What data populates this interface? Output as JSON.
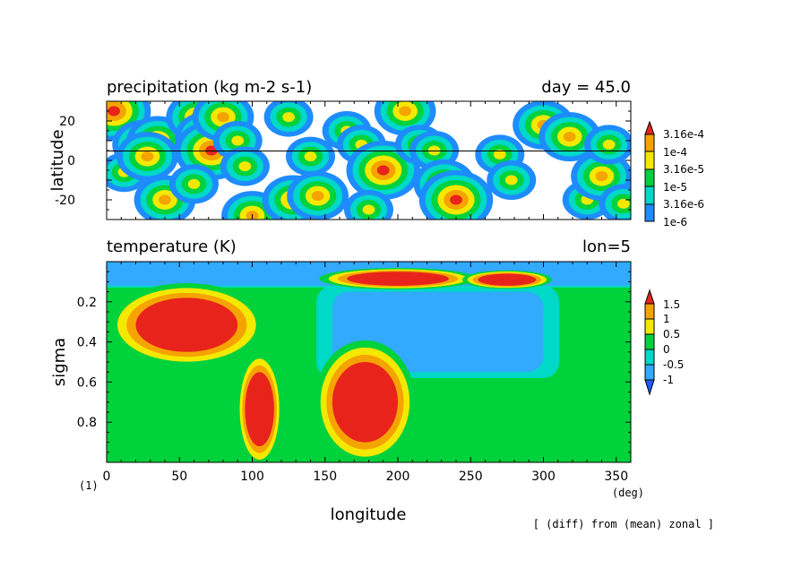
{
  "chart_data": [
    {
      "type": "heatmap",
      "title": "precipitation (kg m-2 s-1)",
      "right_title": "day = 45.0",
      "ylabel": "latitude",
      "xlim": [
        0,
        360
      ],
      "ylim": [
        -30,
        30
      ],
      "yticks": [
        "20",
        "0",
        "-20"
      ],
      "ytick_values": [
        20,
        0,
        -20
      ],
      "reference_line_y": 5,
      "colorbar": {
        "type": "log-contour",
        "labels": [
          "3.16e-4",
          "1e-4",
          "3.16e-5",
          "1e-5",
          "3.16e-6",
          "1e-6"
        ],
        "colors": [
          "#e8231c",
          "#f5a300",
          "#f5e800",
          "#00d23c",
          "#00d8c8",
          "#1e8cff"
        ],
        "extend": "max"
      },
      "hotspots": [
        {
          "x": 5,
          "y": 25,
          "level": 5
        },
        {
          "x": 25,
          "y": 8,
          "level": 4
        },
        {
          "x": 35,
          "y": 10,
          "level": 4
        },
        {
          "x": 12,
          "y": -6,
          "level": 3
        },
        {
          "x": 28,
          "y": 2,
          "level": 4
        },
        {
          "x": 40,
          "y": -20,
          "level": 4
        },
        {
          "x": 62,
          "y": 22,
          "level": 4
        },
        {
          "x": 68,
          "y": 12,
          "level": 4
        },
        {
          "x": 72,
          "y": 5,
          "level": 5
        },
        {
          "x": 60,
          "y": -12,
          "level": 3
        },
        {
          "x": 80,
          "y": 22,
          "level": 4
        },
        {
          "x": 90,
          "y": 10,
          "level": 3
        },
        {
          "x": 95,
          "y": -3,
          "level": 3
        },
        {
          "x": 100,
          "y": -28,
          "level": 4
        },
        {
          "x": 128,
          "y": -20,
          "level": 4
        },
        {
          "x": 125,
          "y": 22,
          "level": 3
        },
        {
          "x": 140,
          "y": 2,
          "level": 3
        },
        {
          "x": 145,
          "y": -18,
          "level": 4
        },
        {
          "x": 165,
          "y": 15,
          "level": 3
        },
        {
          "x": 175,
          "y": 8,
          "level": 3
        },
        {
          "x": 190,
          "y": -5,
          "level": 5
        },
        {
          "x": 180,
          "y": -25,
          "level": 3
        },
        {
          "x": 205,
          "y": 25,
          "level": 4
        },
        {
          "x": 215,
          "y": 8,
          "level": 3
        },
        {
          "x": 225,
          "y": 5,
          "level": 3
        },
        {
          "x": 232,
          "y": -12,
          "level": 4
        },
        {
          "x": 240,
          "y": -20,
          "level": 5
        },
        {
          "x": 270,
          "y": 3,
          "level": 3
        },
        {
          "x": 278,
          "y": -10,
          "level": 3
        },
        {
          "x": 300,
          "y": 18,
          "level": 4
        },
        {
          "x": 318,
          "y": 12,
          "level": 4
        },
        {
          "x": 330,
          "y": -20,
          "level": 3
        },
        {
          "x": 340,
          "y": -8,
          "level": 4
        },
        {
          "x": 345,
          "y": 8,
          "level": 3
        },
        {
          "x": 355,
          "y": -22,
          "level": 3
        }
      ]
    },
    {
      "type": "heatmap",
      "title": "temperature (K)",
      "right_title": "lon=5",
      "xlabel": "longitude",
      "ylabel": "sigma",
      "xlim": [
        0,
        360
      ],
      "ylim": [
        0,
        1
      ],
      "y_inverted": true,
      "xticks": [
        "0",
        "50",
        "100",
        "150",
        "200",
        "250",
        "300",
        "350"
      ],
      "xtick_values": [
        0,
        50,
        100,
        150,
        200,
        250,
        300,
        350
      ],
      "yticks": [
        "0.2",
        "0.4",
        "0.6",
        "0.8"
      ],
      "ytick_values": [
        0.2,
        0.4,
        0.6,
        0.8
      ],
      "x_unit": "(deg)",
      "colorbar": {
        "type": "contour",
        "labels": [
          "1.5",
          "1",
          "0.5",
          "0",
          "-0.5",
          "-1"
        ],
        "colors": [
          "#e8231c",
          "#f5a300",
          "#f5e800",
          "#00d23c",
          "#00d8c8",
          "#32aaff",
          "#1e5aff"
        ],
        "extend": "both"
      },
      "regions": [
        {
          "xmin": 0,
          "xmax": 360,
          "smin": 0,
          "smax": 0.12,
          "level": -1
        },
        {
          "xmin": 155,
          "xmax": 300,
          "smin": 0.15,
          "smax": 0.55,
          "level": -1
        },
        {
          "xmin": 165,
          "xmax": 235,
          "smin": 0.05,
          "smax": 0.12,
          "level": 1.5
        },
        {
          "xmin": 255,
          "xmax": 295,
          "smin": 0.06,
          "smax": 0.12,
          "level": 1.5
        },
        {
          "xmin": 20,
          "xmax": 90,
          "smin": 0.18,
          "smax": 0.45,
          "level": 1.5
        },
        {
          "xmin": 95,
          "xmax": 115,
          "smin": 0.55,
          "smax": 0.92,
          "level": 1.5
        },
        {
          "xmin": 155,
          "xmax": 200,
          "smin": 0.5,
          "smax": 0.9,
          "level": 1.5
        }
      ],
      "annotation": "[ (diff) from (mean) zonal ]"
    }
  ],
  "page": {
    "frame_label": "(1)"
  },
  "top": {
    "title": "precipitation (kg m-2 s-1)",
    "right": "day = 45.0",
    "ylabel": "latitude",
    "yticks": [
      "20",
      "0",
      "-20"
    ],
    "cbar": [
      "3.16e-4",
      "1e-4",
      "3.16e-5",
      "1e-5",
      "3.16e-6",
      "1e-6"
    ]
  },
  "bottom": {
    "title": "temperature (K)",
    "right": "lon=5",
    "ylabel": "sigma",
    "xlabel": "longitude",
    "xunit": "(deg)",
    "xticks": [
      "0",
      "50",
      "100",
      "150",
      "200",
      "250",
      "300",
      "350"
    ],
    "yticks": [
      "0.2",
      "0.4",
      "0.6",
      "0.8"
    ],
    "cbar": [
      "1.5",
      "1",
      "0.5",
      "0",
      "-0.5",
      "-1"
    ],
    "note": "[ (diff) from (mean) zonal ]"
  }
}
